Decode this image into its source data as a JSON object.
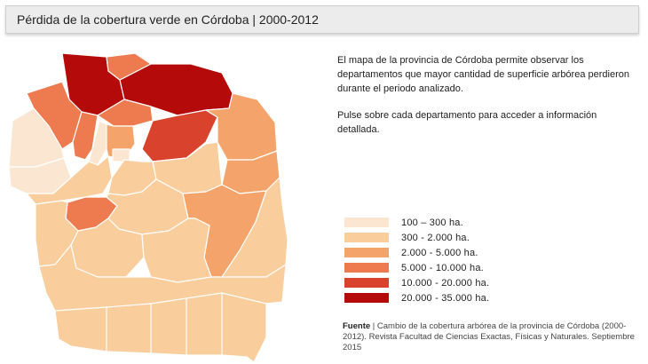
{
  "header": {
    "title": "Pérdida de la cobertura verde en Córdoba  |  2000-2012"
  },
  "description": {
    "paragraph1": "El mapa de la provincia de Córdoba permite observar los departamentos que mayor cantidad de superficie arbórea perdieron durante el periodo analizado.",
    "paragraph2": "Pulse sobre cada departamento para acceder a información detallada."
  },
  "legend": {
    "items": [
      {
        "label": "100 – 300 ha.",
        "color": "#fbe6d2"
      },
      {
        "label": "300 - 2.000 ha.",
        "color": "#f9cd9c"
      },
      {
        "label": "2.000 - 5.000 ha.",
        "color": "#f4a46a"
      },
      {
        "label": "5.000 - 10.000 ha.",
        "color": "#ee7b4f"
      },
      {
        "label": "10.000 - 20.000 ha.",
        "color": "#d9432e"
      },
      {
        "label": "20.000 - 35.000 ha.",
        "color": "#b50a0a"
      }
    ]
  },
  "source": {
    "label": "Fuente",
    "text": " | Cambio de la cobertura arbórea de la provincia de Córdoba (2000-2012). Revista Facultad de Ciencias Exactas, Físicas y Naturales. Septiembre 2015"
  }
}
